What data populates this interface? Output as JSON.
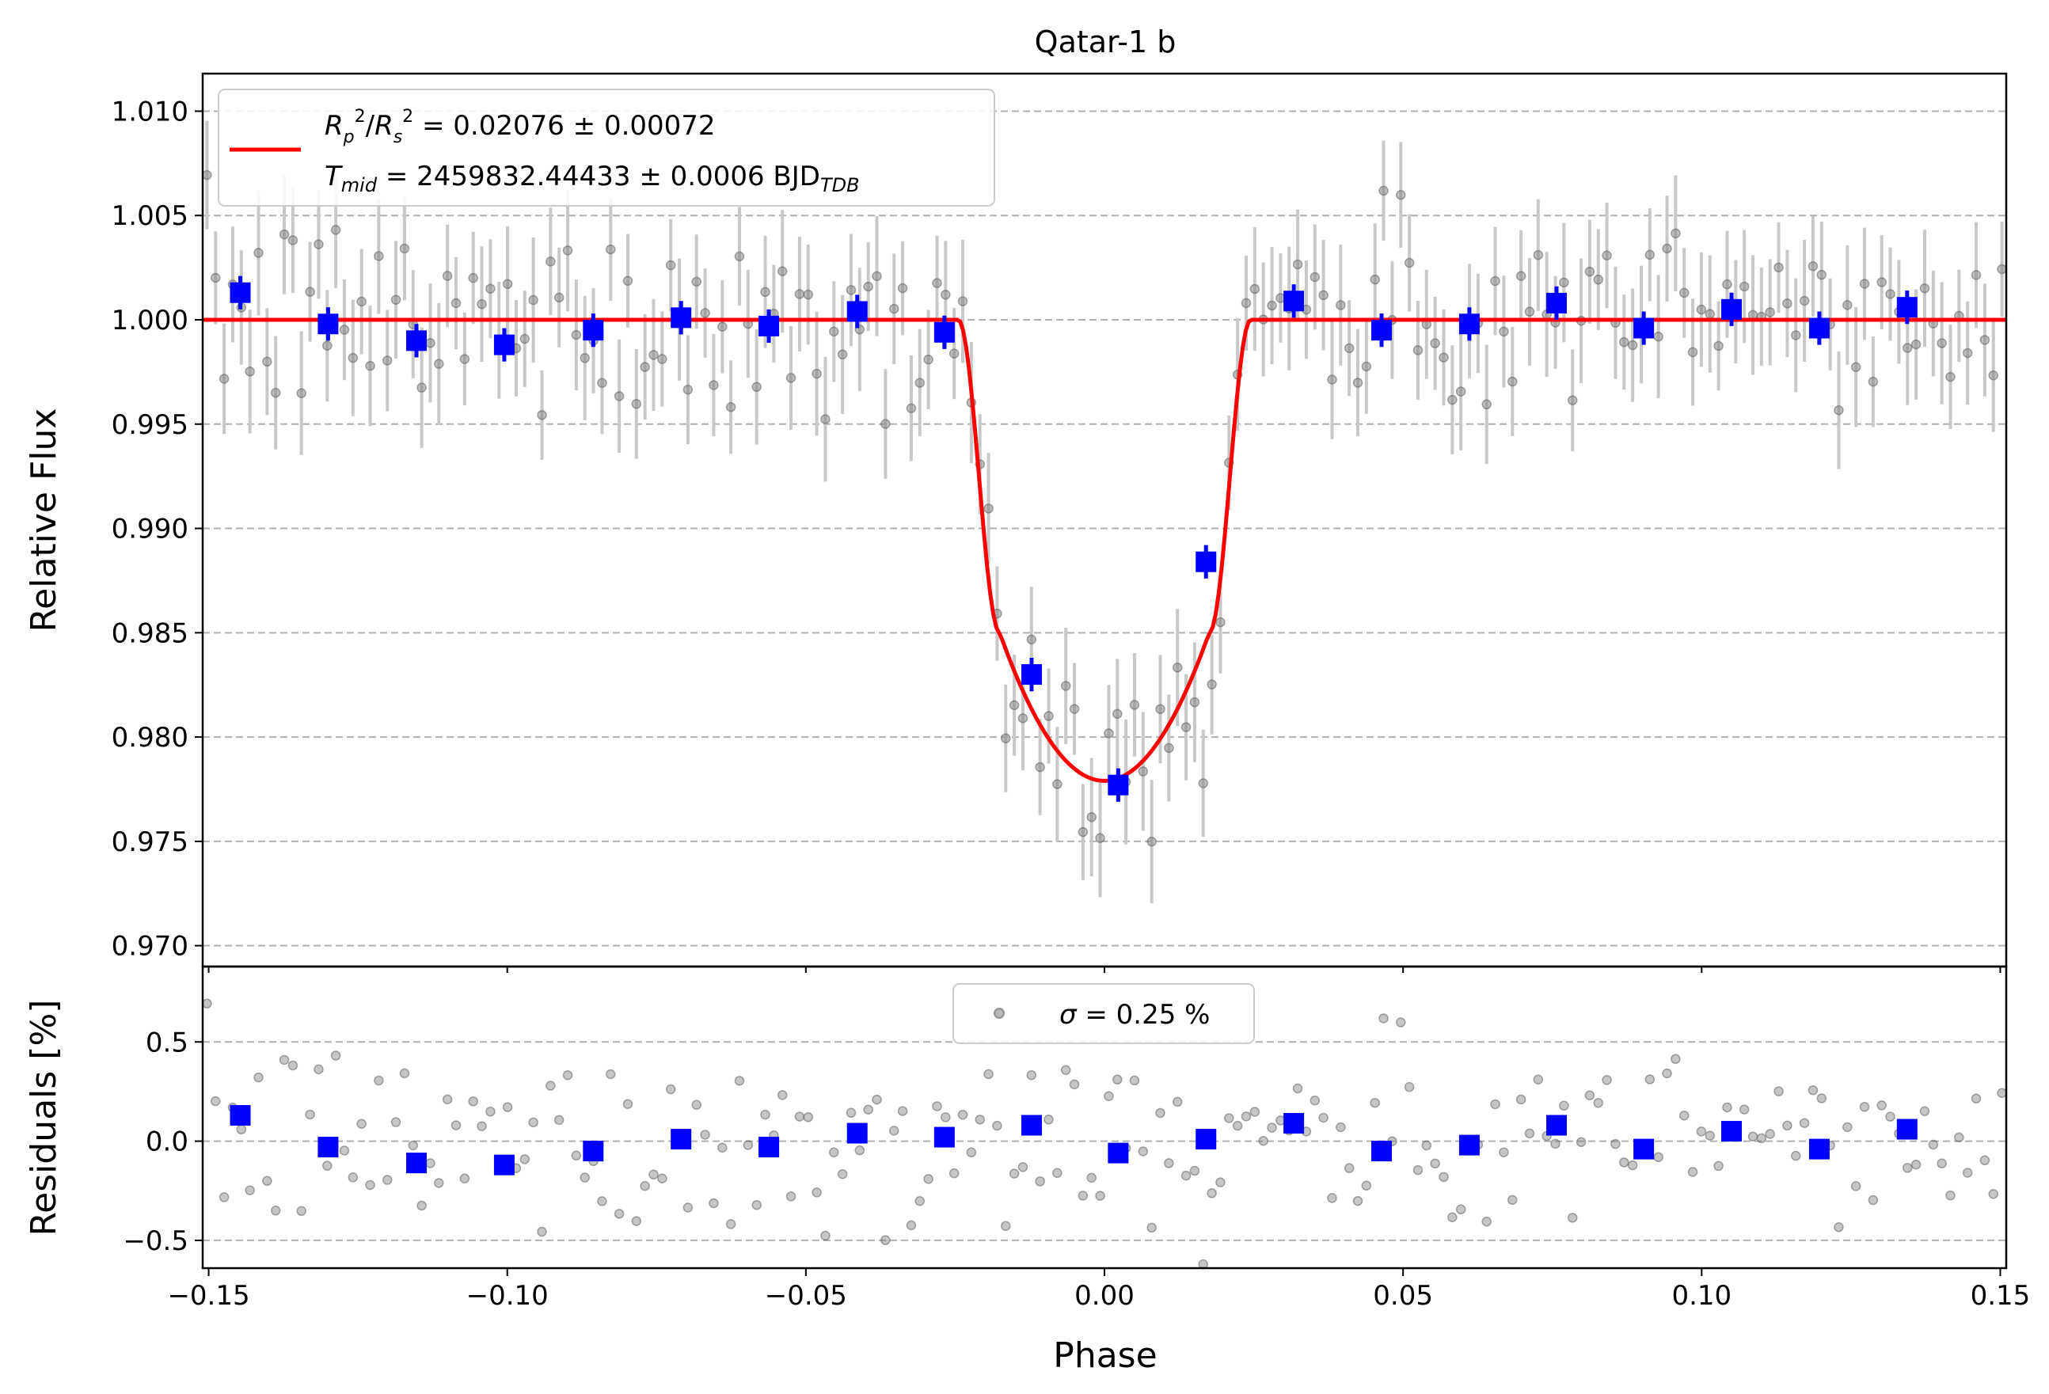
{
  "chart_data": [
    {
      "type": "scatter",
      "panel": "light-curve",
      "title": "Qatar-1 b",
      "xlabel": "Phase",
      "ylabel": "Relative Flux",
      "xlim": [
        -0.151,
        0.151
      ],
      "ylim": [
        0.969,
        1.0118
      ],
      "grid": "horizontal dashed",
      "xticks": [
        "-0.15",
        "-0.10",
        "-0.05",
        "0.00",
        "0.05",
        "0.10",
        "0.15"
      ],
      "xtick_values": [
        -0.15,
        -0.1,
        -0.05,
        0.0,
        0.05,
        0.1,
        0.15
      ],
      "yticks": [
        "0.970",
        "0.975",
        "0.980",
        "0.985",
        "0.990",
        "0.995",
        "1.000",
        "1.005",
        "1.010"
      ],
      "ytick_values": [
        0.97,
        0.975,
        0.98,
        0.985,
        0.99,
        0.995,
        1.0,
        1.005,
        1.01
      ],
      "legend_position": "top-left",
      "legend": {
        "line1": "Rₚ²/Rₛ² = 0.02076 ± 0.00072",
        "line2": "Tₘᵢᵈ = 2459832.44433 ± 0.0006 BJDₜᴅʙ"
      },
      "model": {
        "name": "transit model",
        "color": "#ff0000",
        "baseline": 1.0,
        "depth_min": 0.9779,
        "t_ingress_start": -0.0245,
        "t_ingress_end": -0.0175,
        "t_egress_start": 0.0175,
        "t_egress_end": 0.0245
      },
      "binned": {
        "color": "#0000ff",
        "x": [
          -0.1447,
          -0.13,
          -0.1152,
          -0.1005,
          -0.0856,
          -0.0709,
          -0.0562,
          -0.0414,
          -0.0268,
          -0.0122,
          0.0023,
          0.017,
          0.0317,
          0.0464,
          0.0611,
          0.0757,
          0.0903,
          0.105,
          0.1197,
          0.1344
        ],
        "y": [
          1.0013,
          0.9998,
          0.999,
          0.9988,
          0.9995,
          1.0001,
          0.9997,
          1.0004,
          0.9994,
          0.983,
          0.9777,
          0.9884,
          1.0009,
          0.9995,
          0.9998,
          1.0008,
          0.9996,
          1.0005,
          0.9996,
          1.0006
        ]
      },
      "raw_points": {
        "color": "#808080",
        "count": 210,
        "scatter_sigma": 0.0025,
        "typical_error": 0.0025
      }
    },
    {
      "type": "scatter",
      "panel": "residuals",
      "xlabel": "Phase",
      "ylabel": "Residuals [%]",
      "xlim": [
        -0.151,
        0.151
      ],
      "ylim": [
        -0.64,
        0.88
      ],
      "grid": "horizontal dashed",
      "yticks": [
        "−0.5",
        "0.0",
        "0.5"
      ],
      "ytick_values": [
        -0.5,
        0.0,
        0.5
      ],
      "xticks": [
        "−0.15",
        "−0.10",
        "−0.05",
        "0.00",
        "0.05",
        "0.10",
        "0.15"
      ],
      "legend_position": "top-center",
      "legend": {
        "label": "σ = 0.25 %"
      },
      "binned": {
        "color": "#0000ff",
        "x": [
          -0.1447,
          -0.13,
          -0.1152,
          -0.1005,
          -0.0856,
          -0.0709,
          -0.0562,
          -0.0414,
          -0.0268,
          -0.0122,
          0.0023,
          0.017,
          0.0317,
          0.0464,
          0.0611,
          0.0757,
          0.0903,
          0.105,
          0.1197,
          0.1344
        ],
        "y": [
          0.13,
          -0.03,
          -0.11,
          -0.12,
          -0.05,
          0.01,
          -0.03,
          0.04,
          0.02,
          0.08,
          -0.06,
          0.01,
          0.09,
          -0.05,
          -0.02,
          0.08,
          -0.04,
          0.05,
          -0.04,
          0.06
        ]
      }
    }
  ]
}
